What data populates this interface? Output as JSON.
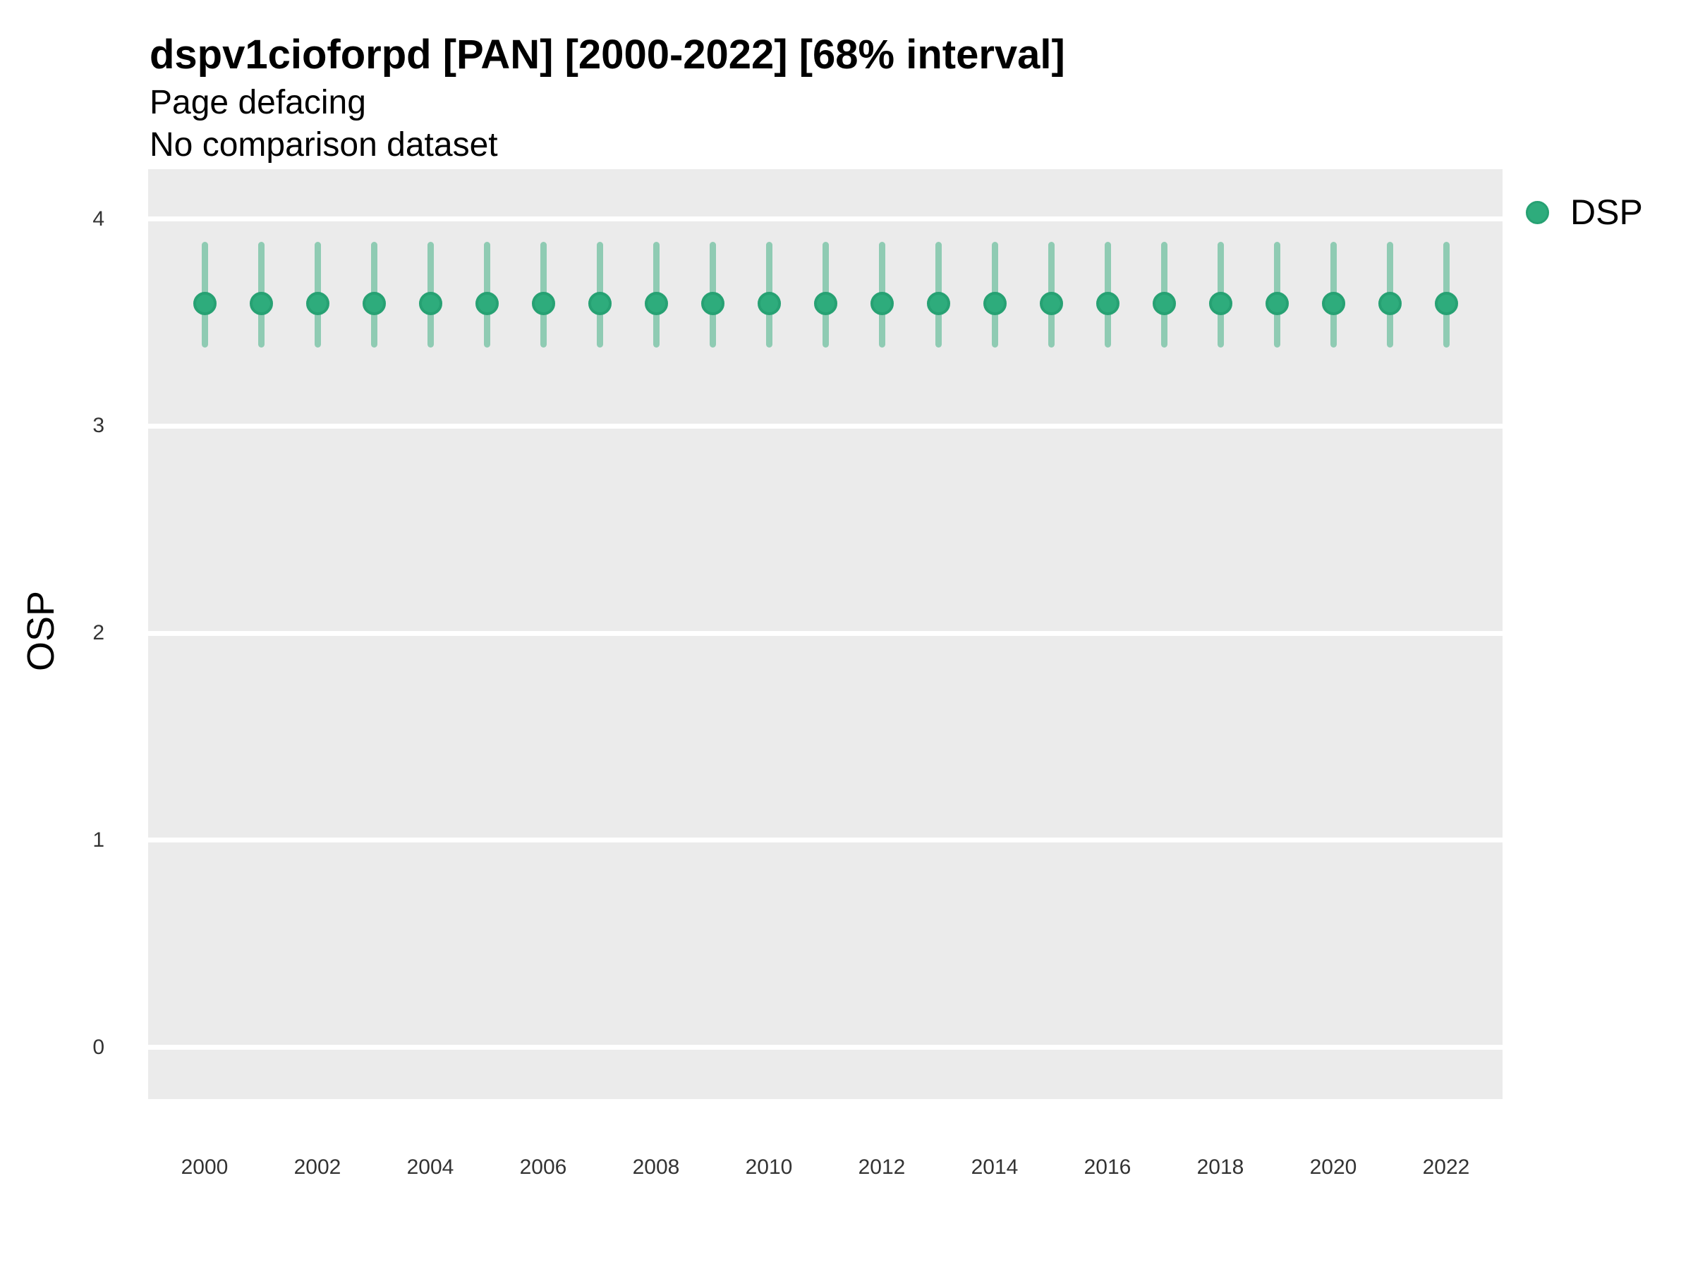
{
  "header": {
    "title": "dspv1cioforpd [PAN] [2000-2022] [68% interval]",
    "subtitle": "Page defacing",
    "note": "No comparison dataset"
  },
  "legend": {
    "label": "DSP",
    "position": "right-top"
  },
  "axes": {
    "y_label": "OSP",
    "y_ticks": [
      0,
      1,
      2,
      3,
      4
    ],
    "x_ticks": [
      2000,
      2002,
      2004,
      2006,
      2008,
      2010,
      2012,
      2014,
      2016,
      2018,
      2020,
      2022
    ]
  },
  "colors": {
    "point_fill": "#2EAC7C",
    "point_border": "#27A173",
    "interval_bar": "#8FCBB3",
    "panel_bg": "#EBEBEB",
    "gridline": "#FFFFFF",
    "tick_text": "#333333"
  },
  "chart_data": {
    "type": "scatter",
    "title": "dspv1cioforpd [PAN] [2000-2022] [68% interval]",
    "subtitle": "Page defacing",
    "note": "No comparison dataset",
    "interval": "68%",
    "xlabel": "",
    "ylabel": "OSP",
    "xlim": [
      1999,
      2023
    ],
    "ylim": [
      -0.25,
      4.24
    ],
    "grid": "horizontal-only",
    "legend_position": "right",
    "x": [
      2000,
      2001,
      2002,
      2003,
      2004,
      2005,
      2006,
      2007,
      2008,
      2009,
      2010,
      2011,
      2012,
      2013,
      2014,
      2015,
      2016,
      2017,
      2018,
      2019,
      2020,
      2021,
      2022
    ],
    "series": [
      {
        "name": "DSP",
        "center": [
          3.59,
          3.59,
          3.59,
          3.59,
          3.59,
          3.59,
          3.59,
          3.59,
          3.59,
          3.59,
          3.59,
          3.59,
          3.59,
          3.59,
          3.59,
          3.59,
          3.59,
          3.59,
          3.59,
          3.59,
          3.59,
          3.59,
          3.59
        ],
        "lower": [
          3.38,
          3.38,
          3.38,
          3.38,
          3.38,
          3.38,
          3.38,
          3.38,
          3.38,
          3.38,
          3.38,
          3.38,
          3.38,
          3.38,
          3.38,
          3.38,
          3.38,
          3.38,
          3.38,
          3.38,
          3.38,
          3.38,
          3.38
        ],
        "upper": [
          3.89,
          3.89,
          3.89,
          3.89,
          3.89,
          3.89,
          3.89,
          3.89,
          3.89,
          3.89,
          3.89,
          3.89,
          3.89,
          3.89,
          3.89,
          3.89,
          3.89,
          3.89,
          3.89,
          3.89,
          3.89,
          3.89,
          3.89
        ]
      }
    ]
  }
}
